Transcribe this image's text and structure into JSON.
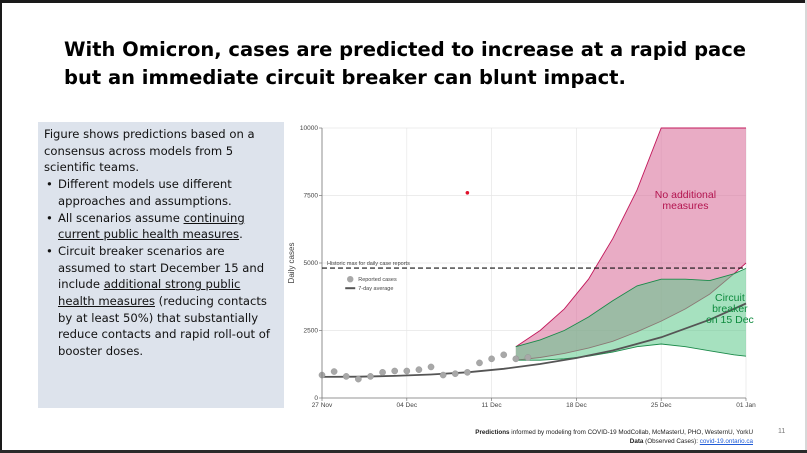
{
  "slide": {
    "title_line1": "With Omicron, cases are predicted to increase at a rapid pace",
    "title_line2": "but an immediate circuit breaker can blunt impact.",
    "page_number": "11"
  },
  "textbox": {
    "intro": "Figure shows predictions based on a consensus across models from 5 scientific teams.",
    "bullet1": "Different models use different approaches and assumptions.",
    "bullet2_pre": "All scenarios assume ",
    "bullet2_link": "continuing current public health measures",
    "bullet2_post": ".",
    "bullet3_pre": "Circuit breaker scenarios are assumed to start December 15 and include ",
    "bullet3_link": "additional strong public health measures",
    "bullet3_post": " (reducing contacts by at least 50%) that substantially reduce contacts and rapid roll-out of booster doses."
  },
  "footer": {
    "line1_bold": "Predictions",
    "line1_rest": " informed by modeling from COVID-19 ModCollab, McMasterU, PHO, WesternU, YorkU",
    "line2_bold": "Data",
    "line2_rest": " (Observed Cases): ",
    "line2_link": "covid-19.ontario.ca"
  },
  "colors": {
    "no_measures_fill": "#d9709b",
    "no_measures_line": "#c2185b",
    "circuit_fill": "#5cc88a",
    "circuit_line": "#1b8a4a",
    "reported_points": "#a8a8a8",
    "average_line": "#555555",
    "outlier_point": "#e0112b",
    "panel_bg": "#dde3ec"
  },
  "chart_data": {
    "type": "area",
    "x_axis_type": "date",
    "xlabel": "",
    "ylabel": "Daily cases",
    "xlim": [
      "2021-11-27",
      "2022-01-01"
    ],
    "ylim": [
      0,
      10000
    ],
    "x_tick_labels": [
      "27 Nov",
      "04 Dec",
      "11 Dec",
      "18 Dec",
      "25 Dec",
      "01 Jan"
    ],
    "x_ticks": [
      "2021-11-27",
      "2021-12-04",
      "2021-12-11",
      "2021-12-18",
      "2021-12-25",
      "2022-01-01"
    ],
    "y_tick_labels": [
      "0",
      "2500",
      "5000",
      "7500",
      "10000"
    ],
    "y_ticks": [
      0,
      2500,
      5000,
      7500,
      10000
    ],
    "grid": true,
    "legend": {
      "placement": "upper-left",
      "entries": [
        "Reported cases",
        "7-day average"
      ]
    },
    "historic_max": {
      "label": "Historic max for daily case reports",
      "value": 4812
    },
    "series": [
      {
        "name": "Reported cases",
        "kind": "scatter",
        "x": [
          "2021-11-27",
          "2021-11-28",
          "2021-11-29",
          "2021-11-30",
          "2021-12-01",
          "2021-12-02",
          "2021-12-03",
          "2021-12-04",
          "2021-12-05",
          "2021-12-06",
          "2021-12-07",
          "2021-12-08",
          "2021-12-09",
          "2021-12-10",
          "2021-12-11",
          "2021-12-12",
          "2021-12-13",
          "2021-12-14"
        ],
        "y": [
          850,
          980,
          800,
          700,
          800,
          950,
          1000,
          1000,
          1050,
          1150,
          850,
          900,
          950,
          1300,
          1450,
          1600,
          1450,
          1500
        ]
      },
      {
        "name": "7-day average",
        "kind": "line",
        "x": [
          "2021-11-27",
          "2021-11-30",
          "2021-12-03",
          "2021-12-06",
          "2021-12-09",
          "2021-12-12",
          "2021-12-15",
          "2021-12-18",
          "2021-12-21",
          "2021-12-25",
          "2021-12-29",
          "2022-01-01"
        ],
        "y": [
          780,
          790,
          820,
          870,
          950,
          1080,
          1260,
          1480,
          1760,
          2250,
          2900,
          3500
        ]
      }
    ],
    "outlier_point": {
      "x": "2021-12-09",
      "y": 7600
    },
    "scenarios": [
      {
        "name": "No additional measures",
        "label": "No additional measures",
        "x": [
          "2021-12-13",
          "2021-12-15",
          "2021-12-17",
          "2021-12-19",
          "2021-12-21",
          "2021-12-23",
          "2021-12-25",
          "2021-12-27",
          "2021-12-29",
          "2021-12-31",
          "2022-01-01"
        ],
        "upper": [
          1900,
          2500,
          3300,
          4400,
          5900,
          7700,
          10000,
          10000,
          10000,
          10000,
          10000
        ],
        "lower": [
          1400,
          1500,
          1650,
          1850,
          2100,
          2450,
          2850,
          3300,
          3850,
          4600,
          5000
        ]
      },
      {
        "name": "Circuit breaker on 15 Dec",
        "label": "Circuit breaker on 15 Dec",
        "x": [
          "2021-12-13",
          "2021-12-15",
          "2021-12-17",
          "2021-12-19",
          "2021-12-21",
          "2021-12-23",
          "2021-12-25",
          "2021-12-27",
          "2021-12-29",
          "2021-12-31",
          "2022-01-01"
        ],
        "upper": [
          1900,
          2150,
          2500,
          3000,
          3600,
          4150,
          4400,
          4400,
          4350,
          4600,
          4800
        ],
        "lower": [
          1400,
          1400,
          1450,
          1550,
          1700,
          1900,
          2000,
          1900,
          1750,
          1600,
          1550
        ]
      }
    ]
  }
}
